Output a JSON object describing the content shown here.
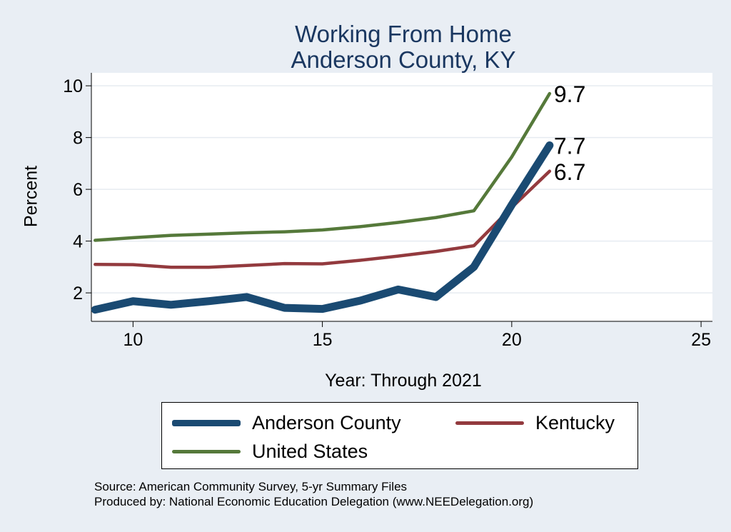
{
  "chart_data": {
    "type": "line",
    "title": [
      "Working From Home",
      "Anderson County, KY"
    ],
    "xlabel": "Year: Through 2021",
    "ylabel": "Percent",
    "xlim": [
      8.9,
      25.3
    ],
    "ylim": [
      0.9,
      10.5
    ],
    "xticks": [
      10,
      15,
      20,
      25
    ],
    "yticks": [
      2,
      4,
      6,
      8,
      10
    ],
    "grid": true,
    "legend_position": "bottom",
    "x": [
      9,
      10,
      11,
      12,
      13,
      14,
      15,
      16,
      17,
      18,
      19,
      20,
      21
    ],
    "series": [
      {
        "name": "Anderson County",
        "color": "#1a4a72",
        "values": [
          1.35,
          1.68,
          1.54,
          1.68,
          1.84,
          1.42,
          1.38,
          1.7,
          2.13,
          1.84,
          3.0,
          5.4,
          7.7
        ],
        "end_label": "7.7"
      },
      {
        "name": "Kentucky",
        "color": "#933a3e",
        "values": [
          3.1,
          3.09,
          2.99,
          2.99,
          3.06,
          3.13,
          3.12,
          3.26,
          3.42,
          3.6,
          3.82,
          5.3,
          6.7
        ],
        "end_label": "6.7"
      },
      {
        "name": "United States",
        "color": "#55793a",
        "values": [
          4.03,
          4.13,
          4.22,
          4.27,
          4.32,
          4.36,
          4.43,
          4.56,
          4.72,
          4.91,
          5.17,
          7.25,
          9.7
        ],
        "end_label": "9.7"
      }
    ]
  },
  "legend": {
    "anderson": "Anderson County",
    "kentucky": "Kentucky",
    "us": "United States"
  },
  "source": {
    "line1": "Source: American Community Survey, 5-yr Summary Files",
    "line2": "Produced by: National Economic Education Delegation (www.NEEDelegation.org)"
  }
}
